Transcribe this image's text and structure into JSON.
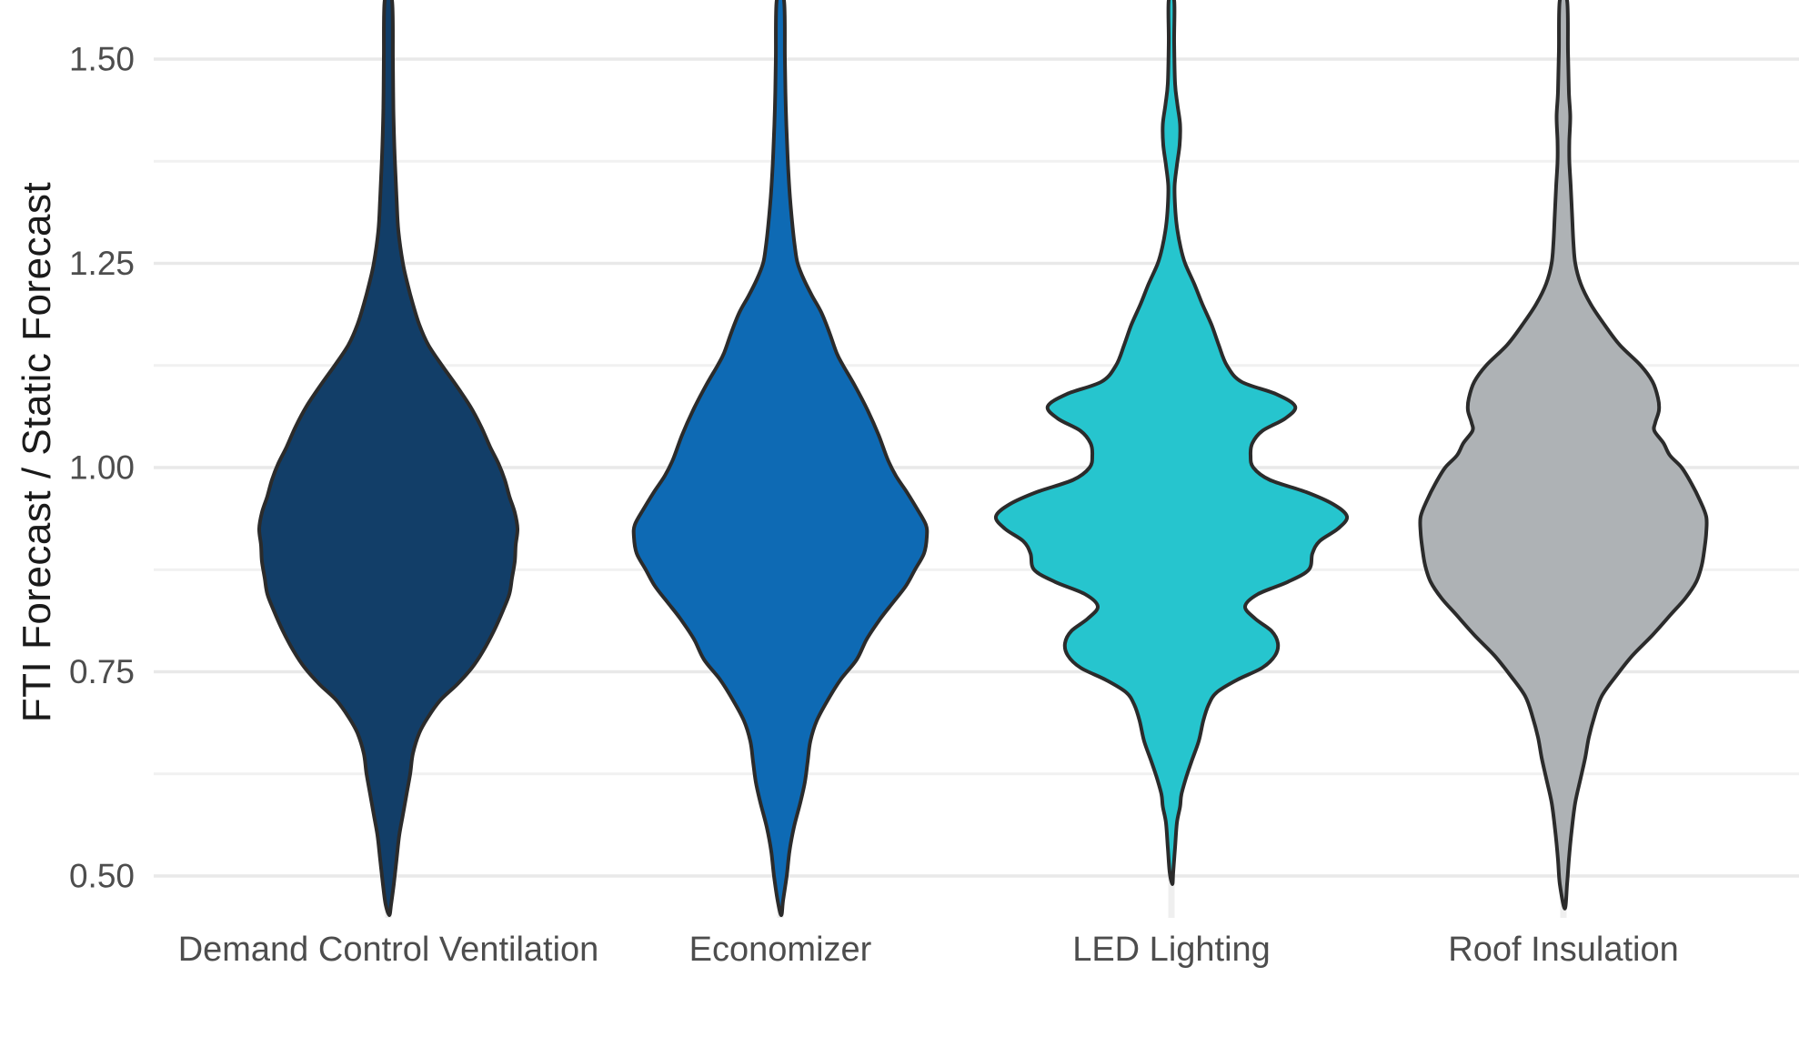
{
  "chart_data": {
    "type": "violin",
    "title": "",
    "xlabel": "",
    "ylabel": "FTI Forecast / Static Forecast",
    "categories": [
      "Demand Control Ventilation",
      "Economizer",
      "LED Lighting",
      "Roof Insulation"
    ],
    "y_ticks": [
      {
        "value": 0.5,
        "label": "0.50"
      },
      {
        "value": 0.75,
        "label": "0.75"
      },
      {
        "value": 1.0,
        "label": "1.00"
      },
      {
        "value": 1.25,
        "label": "1.25"
      },
      {
        "value": 1.5,
        "label": "1.50"
      }
    ],
    "y_minor_ticks": [
      0.625,
      0.875,
      1.125,
      1.375
    ],
    "ylim": [
      0.448,
      1.55
    ],
    "grid": {
      "major_color": "#e9e9e9",
      "minor_color": "#f1f1f1",
      "vertical_color": "#efefef",
      "background": "#ffffff"
    },
    "outline_color": "#2b2b2b",
    "outline_width": 4,
    "legend": "none",
    "series": [
      {
        "name": "Demand Control Ventilation",
        "fill": "#123e68",
        "profile": [
          [
            1.572,
            4
          ],
          [
            1.5,
            5
          ],
          [
            1.44,
            5.5
          ],
          [
            1.38,
            7
          ],
          [
            1.33,
            9
          ],
          [
            1.29,
            11
          ],
          [
            1.25,
            16
          ],
          [
            1.225,
            21
          ],
          [
            1.2,
            27
          ],
          [
            1.175,
            34
          ],
          [
            1.15,
            44
          ],
          [
            1.125,
            59
          ],
          [
            1.1,
            75
          ],
          [
            1.075,
            90
          ],
          [
            1.05,
            102
          ],
          [
            1.025,
            112
          ],
          [
            1.005,
            121
          ],
          [
            0.985,
            128
          ],
          [
            0.965,
            133
          ],
          [
            0.945,
            139
          ],
          [
            0.925,
            142
          ],
          [
            0.905,
            140
          ],
          [
            0.885,
            139
          ],
          [
            0.865,
            136
          ],
          [
            0.845,
            133
          ],
          [
            0.825,
            126
          ],
          [
            0.8,
            116
          ],
          [
            0.775,
            104
          ],
          [
            0.755,
            92
          ],
          [
            0.735,
            76
          ],
          [
            0.715,
            57
          ],
          [
            0.695,
            44
          ],
          [
            0.675,
            34
          ],
          [
            0.65,
            27
          ],
          [
            0.625,
            24
          ],
          [
            0.6,
            20
          ],
          [
            0.575,
            16
          ],
          [
            0.55,
            12
          ],
          [
            0.52,
            9
          ],
          [
            0.49,
            6
          ],
          [
            0.465,
            3
          ],
          [
            0.452,
            1
          ]
        ]
      },
      {
        "name": "Economizer",
        "fill": "#0e6ab4",
        "profile": [
          [
            1.572,
            4
          ],
          [
            1.5,
            5
          ],
          [
            1.44,
            6
          ],
          [
            1.38,
            8
          ],
          [
            1.34,
            10
          ],
          [
            1.3,
            13
          ],
          [
            1.27,
            16
          ],
          [
            1.25,
            19
          ],
          [
            1.23,
            26
          ],
          [
            1.21,
            35
          ],
          [
            1.19,
            45
          ],
          [
            1.165,
            54
          ],
          [
            1.14,
            62
          ],
          [
            1.125,
            69
          ],
          [
            1.1,
            82
          ],
          [
            1.07,
            96
          ],
          [
            1.04,
            108
          ],
          [
            1.01,
            118
          ],
          [
            0.99,
            127
          ],
          [
            0.97,
            139
          ],
          [
            0.95,
            150
          ],
          [
            0.93,
            160
          ],
          [
            0.915,
            161
          ],
          [
            0.895,
            158
          ],
          [
            0.875,
            148
          ],
          [
            0.855,
            138
          ],
          [
            0.835,
            124
          ],
          [
            0.815,
            110
          ],
          [
            0.79,
            95
          ],
          [
            0.765,
            84
          ],
          [
            0.74,
            66
          ],
          [
            0.715,
            52
          ],
          [
            0.69,
            40
          ],
          [
            0.665,
            33
          ],
          [
            0.64,
            30
          ],
          [
            0.615,
            27
          ],
          [
            0.59,
            22
          ],
          [
            0.56,
            15
          ],
          [
            0.53,
            10
          ],
          [
            0.5,
            7
          ],
          [
            0.47,
            3
          ],
          [
            0.452,
            1
          ]
        ]
      },
      {
        "name": "LED Lighting",
        "fill": "#26c5ce",
        "profile": [
          [
            1.572,
            3
          ],
          [
            1.52,
            3
          ],
          [
            1.47,
            4
          ],
          [
            1.445,
            6.5
          ],
          [
            1.42,
            9.5
          ],
          [
            1.395,
            9
          ],
          [
            1.37,
            6
          ],
          [
            1.345,
            3.5
          ],
          [
            1.32,
            4
          ],
          [
            1.295,
            6
          ],
          [
            1.27,
            10
          ],
          [
            1.25,
            15
          ],
          [
            1.225,
            25
          ],
          [
            1.2,
            34
          ],
          [
            1.175,
            44
          ],
          [
            1.15,
            52
          ],
          [
            1.125,
            61
          ],
          [
            1.105,
            77
          ],
          [
            1.09,
            115
          ],
          [
            1.075,
            136
          ],
          [
            1.06,
            125
          ],
          [
            1.045,
            100
          ],
          [
            1.03,
            89
          ],
          [
            1.015,
            87
          ],
          [
            1.0,
            90
          ],
          [
            0.985,
            108
          ],
          [
            0.97,
            148
          ],
          [
            0.955,
            178
          ],
          [
            0.94,
            193
          ],
          [
            0.925,
            183
          ],
          [
            0.91,
            163
          ],
          [
            0.895,
            155
          ],
          [
            0.875,
            151
          ],
          [
            0.86,
            128
          ],
          [
            0.845,
            95
          ],
          [
            0.83,
            81
          ],
          [
            0.815,
            92
          ],
          [
            0.8,
            110
          ],
          [
            0.785,
            117
          ],
          [
            0.77,
            114
          ],
          [
            0.755,
            100
          ],
          [
            0.74,
            72
          ],
          [
            0.725,
            50
          ],
          [
            0.71,
            41
          ],
          [
            0.69,
            35
          ],
          [
            0.665,
            30
          ],
          [
            0.64,
            22
          ],
          [
            0.62,
            16
          ],
          [
            0.6,
            11
          ],
          [
            0.585,
            9.5
          ],
          [
            0.565,
            6
          ],
          [
            0.535,
            4
          ],
          [
            0.505,
            2
          ],
          [
            0.49,
            1
          ]
        ]
      },
      {
        "name": "Roof Insulation",
        "fill": "#aeb2b5",
        "profile": [
          [
            1.572,
            4
          ],
          [
            1.51,
            5
          ],
          [
            1.46,
            6
          ],
          [
            1.43,
            7.5
          ],
          [
            1.4,
            6.5
          ],
          [
            1.375,
            6.5
          ],
          [
            1.345,
            8
          ],
          [
            1.31,
            9.5
          ],
          [
            1.275,
            11
          ],
          [
            1.25,
            13
          ],
          [
            1.225,
            19
          ],
          [
            1.2,
            30
          ],
          [
            1.175,
            45
          ],
          [
            1.15,
            62
          ],
          [
            1.125,
            85
          ],
          [
            1.105,
            98
          ],
          [
            1.085,
            104
          ],
          [
            1.07,
            105
          ],
          [
            1.055,
            101
          ],
          [
            1.045,
            100
          ],
          [
            1.03,
            110
          ],
          [
            1.015,
            117
          ],
          [
            1.0,
            130
          ],
          [
            0.98,
            141
          ],
          [
            0.96,
            150
          ],
          [
            0.94,
            157
          ],
          [
            0.92,
            157
          ],
          [
            0.9,
            155
          ],
          [
            0.88,
            152
          ],
          [
            0.86,
            146
          ],
          [
            0.84,
            134
          ],
          [
            0.82,
            118
          ],
          [
            0.795,
            98
          ],
          [
            0.77,
            76
          ],
          [
            0.745,
            58
          ],
          [
            0.72,
            42
          ],
          [
            0.695,
            34
          ],
          [
            0.67,
            28
          ],
          [
            0.645,
            24
          ],
          [
            0.62,
            19
          ],
          [
            0.59,
            13
          ],
          [
            0.555,
            9
          ],
          [
            0.52,
            6
          ],
          [
            0.49,
            4
          ],
          [
            0.46,
            1.5
          ]
        ]
      }
    ]
  }
}
